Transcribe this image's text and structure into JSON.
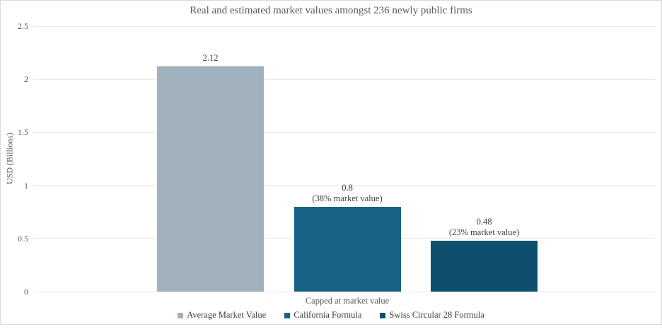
{
  "chart_data": {
    "type": "bar",
    "title": "Real and estimated market values amongst 236 newly public firms",
    "categories": [
      "Capped at market value"
    ],
    "series": [
      {
        "name": "Average Market Value",
        "value": 2.12,
        "color": "#A2B1BE",
        "data_label": [
          "2.12"
        ]
      },
      {
        "name": "California Formula",
        "value": 0.8,
        "color": "#186286",
        "data_label": [
          "0.8",
          "(38% market value)"
        ]
      },
      {
        "name": "Swiss Circular 28 Formula",
        "value": 0.48,
        "color": "#0E4F6D",
        "data_label": [
          "0.48",
          "(23% market value)"
        ]
      }
    ],
    "xlabel": "",
    "ylabel": "USD (Billions)",
    "ylim": [
      0,
      2.5
    ],
    "yticks": [
      0,
      0.5,
      1,
      1.5,
      2,
      2.5
    ],
    "ytick_labels": [
      "0",
      "0.5",
      "1",
      "1.5",
      "2",
      "2.5"
    ],
    "grid": true,
    "legend_position": "bottom"
  },
  "colors": {
    "grid": "#E9E9E9",
    "frame_border": "#D9D9D9",
    "title_text": "#595959",
    "axis_text": "#595959",
    "data_label_text": "#404040"
  }
}
